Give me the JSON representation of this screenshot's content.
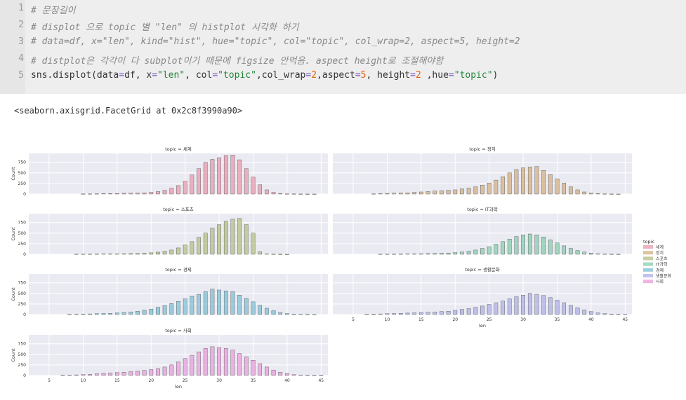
{
  "code": {
    "line_numbers": [
      "1",
      "2",
      "3",
      "4",
      "5"
    ],
    "comment_lines": [
      "# 문장길이",
      "# displot 으로 topic 별 \"len\" 의 histplot 시각화 하기",
      "# data=df, x=\"len\", kind=\"hist\", hue=\"topic\", col=\"topic\", col_wrap=2, aspect=5, height=2",
      "# distplot은 각각이 다 subplot이기 때문에 figsize 안먹음. aspect height로 조절해야함"
    ],
    "code_line": {
      "p1": "sns.displot(data",
      "eq": "=",
      "p2": "df, x",
      "s1": "\"len\"",
      "p3": ", col",
      "s2": "\"topic\"",
      "p4": ",col_wrap",
      "n1": "2",
      "p5": ",aspect",
      "n2": "5",
      "p6": ", height",
      "n3": "2",
      "p7": " ,hue",
      "s3": "\"topic\"",
      "p8": ")"
    }
  },
  "output_text": "<seaborn.axisgrid.FacetGrid at 0x2c8f3990a90>",
  "chart_data": {
    "type": "bar",
    "x_values": [
      5,
      6,
      7,
      8,
      9,
      10,
      11,
      12,
      13,
      14,
      15,
      16,
      17,
      18,
      19,
      20,
      21,
      22,
      23,
      24,
      25,
      26,
      27,
      28,
      29,
      30,
      31,
      32,
      33,
      34,
      35,
      36,
      37,
      38,
      39,
      40,
      41,
      42,
      43,
      44,
      45
    ],
    "xlim": [
      2,
      46
    ],
    "ylim": [
      0,
      960
    ],
    "y_ticks": [
      0,
      250,
      500,
      750
    ],
    "x_ticks": [
      5,
      10,
      15,
      20,
      25,
      30,
      35,
      40,
      45
    ],
    "xlabel": "len",
    "ylabel": "Count",
    "legend": {
      "title": "topic",
      "placement": "right"
    },
    "series": [
      {
        "name": "세계",
        "title": "topic = 세계",
        "color": "#e8a0b0",
        "values": [
          0,
          0,
          0,
          0,
          0,
          3,
          5,
          8,
          10,
          13,
          15,
          18,
          20,
          25,
          30,
          40,
          60,
          90,
          140,
          200,
          300,
          450,
          600,
          750,
          820,
          860,
          910,
          920,
          810,
          600,
          400,
          220,
          100,
          40,
          15,
          6,
          3,
          2,
          1,
          1,
          0
        ]
      },
      {
        "name": "정치",
        "title": "topic = 정치",
        "color": "#d6b48a",
        "values": [
          0,
          0,
          0,
          5,
          10,
          15,
          20,
          25,
          30,
          40,
          50,
          60,
          70,
          80,
          90,
          100,
          120,
          140,
          170,
          210,
          260,
          330,
          410,
          500,
          580,
          620,
          640,
          650,
          560,
          460,
          360,
          260,
          170,
          100,
          50,
          25,
          10,
          5,
          2,
          1,
          0
        ]
      },
      {
        "name": "스포츠",
        "title": "topic = 스포츠",
        "color": "#b6c38a",
        "values": [
          0,
          0,
          0,
          0,
          5,
          5,
          5,
          8,
          10,
          10,
          12,
          15,
          18,
          20,
          25,
          35,
          50,
          70,
          100,
          150,
          220,
          300,
          400,
          500,
          620,
          700,
          780,
          830,
          850,
          700,
          500,
          60,
          10,
          3,
          2,
          1,
          0,
          0,
          0,
          0,
          0
        ]
      },
      {
        "name": "IT과학",
        "title": "topic = IT과학",
        "color": "#8fceb0",
        "values": [
          0,
          0,
          0,
          0,
          5,
          5,
          5,
          8,
          10,
          12,
          15,
          18,
          20,
          25,
          30,
          40,
          55,
          75,
          100,
          140,
          180,
          240,
          300,
          360,
          420,
          460,
          480,
          460,
          410,
          340,
          270,
          200,
          140,
          90,
          55,
          30,
          15,
          8,
          4,
          2,
          0
        ]
      },
      {
        "name": "경제",
        "title": "topic = 경제",
        "color": "#86c3d6",
        "values": [
          0,
          0,
          0,
          5,
          5,
          10,
          15,
          20,
          25,
          30,
          40,
          50,
          60,
          80,
          100,
          130,
          170,
          210,
          260,
          310,
          370,
          430,
          480,
          540,
          600,
          580,
          560,
          540,
          460,
          380,
          300,
          220,
          150,
          90,
          50,
          25,
          10,
          5,
          2,
          1,
          0
        ]
      },
      {
        "name": "생활문화",
        "title": "topic = 생활문화",
        "color": "#b3b4e6",
        "values": [
          0,
          0,
          5,
          10,
          15,
          20,
          25,
          30,
          35,
          40,
          50,
          55,
          60,
          70,
          80,
          100,
          120,
          140,
          170,
          200,
          240,
          280,
          320,
          370,
          420,
          460,
          500,
          480,
          450,
          400,
          340,
          280,
          220,
          160,
          110,
          70,
          40,
          20,
          10,
          5,
          2
        ]
      },
      {
        "name": "사회",
        "title": "topic = 사회",
        "color": "#eaa3dc",
        "values": [
          0,
          0,
          5,
          10,
          15,
          20,
          30,
          40,
          50,
          60,
          70,
          80,
          90,
          100,
          120,
          140,
          160,
          200,
          250,
          320,
          400,
          480,
          560,
          640,
          680,
          660,
          640,
          600,
          520,
          440,
          360,
          280,
          200,
          130,
          80,
          45,
          20,
          10,
          5,
          2,
          1
        ]
      }
    ]
  }
}
